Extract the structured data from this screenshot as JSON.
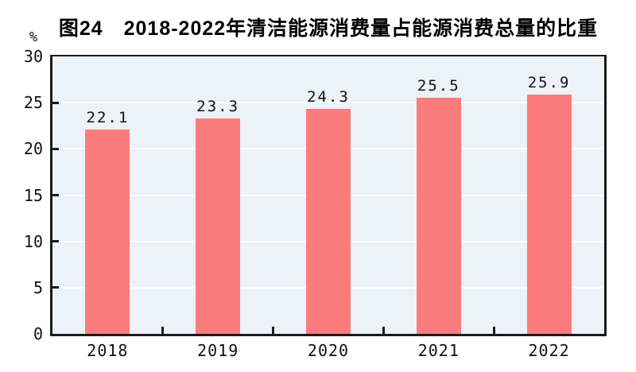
{
  "header": {
    "title": "图24　2018-2022年清洁能源消费量占能源消费总量的比重"
  },
  "y_axis": {
    "unit_label": "%"
  },
  "chart_data": {
    "type": "bar",
    "title": "图24　2018-2022年清洁能源消费量占能源消费总量的比重",
    "categories": [
      "2018",
      "2019",
      "2020",
      "2021",
      "2022"
    ],
    "values": [
      22.1,
      23.3,
      24.3,
      25.5,
      25.9
    ],
    "data_labels": [
      "22.1",
      "23.3",
      "24.3",
      "25.5",
      "25.9"
    ],
    "xlabel": "",
    "ylabel": "%",
    "ylim": [
      0,
      30
    ],
    "yticks": [
      0,
      5,
      10,
      15,
      20,
      25,
      30
    ],
    "gridline_levels": [
      5,
      10,
      15,
      20,
      25
    ],
    "grid": "horizontal",
    "legend_position": "none",
    "colors": {
      "bar": "#fa7c7c",
      "plot_background": "#ecf2f7",
      "gridline": "#ffffff",
      "axis": "#1a1a1a",
      "text": "#111111",
      "page_background": "#ffffff"
    }
  }
}
